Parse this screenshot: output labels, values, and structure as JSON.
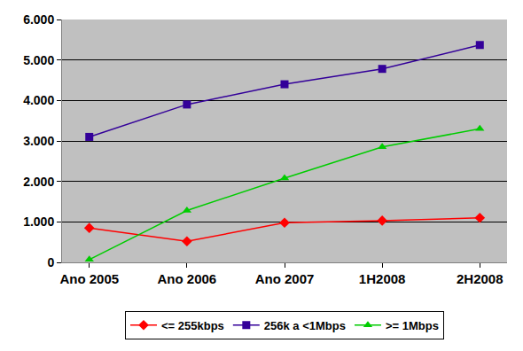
{
  "chart_data": {
    "type": "line",
    "categories": [
      "Ano 2005",
      "Ano 2006",
      "Ano 2007",
      "1H2008",
      "2H2008"
    ],
    "series": [
      {
        "name": "<= 255kbps",
        "color": "#ff0000",
        "marker": "diamond",
        "line_style": "solid",
        "values": [
          850,
          520,
          980,
          1030,
          1100
        ]
      },
      {
        "name": "256k a <1Mbps",
        "color": "#330099",
        "marker": "square",
        "line_style": "solid",
        "values": [
          3100,
          3900,
          4400,
          4780,
          5370
        ]
      },
      {
        "name": ">= 1Mbps",
        "color": "#00cc00",
        "marker": "triangle-up",
        "line_style": "solid",
        "values": [
          70,
          1280,
          2080,
          2850,
          3300
        ]
      }
    ],
    "ylim": [
      0,
      6000
    ],
    "yticks": [
      0,
      {
        "value": 1000,
        "label": "1.000"
      },
      {
        "value": 2000,
        "label": "2.000"
      },
      {
        "value": 3000,
        "label": "3.000"
      },
      {
        "value": 4000,
        "label": "4.000"
      },
      {
        "value": 5000,
        "label": "5.000"
      },
      {
        "value": 6000,
        "label": "6.000"
      }
    ],
    "grid": true,
    "legend": "bottom"
  }
}
